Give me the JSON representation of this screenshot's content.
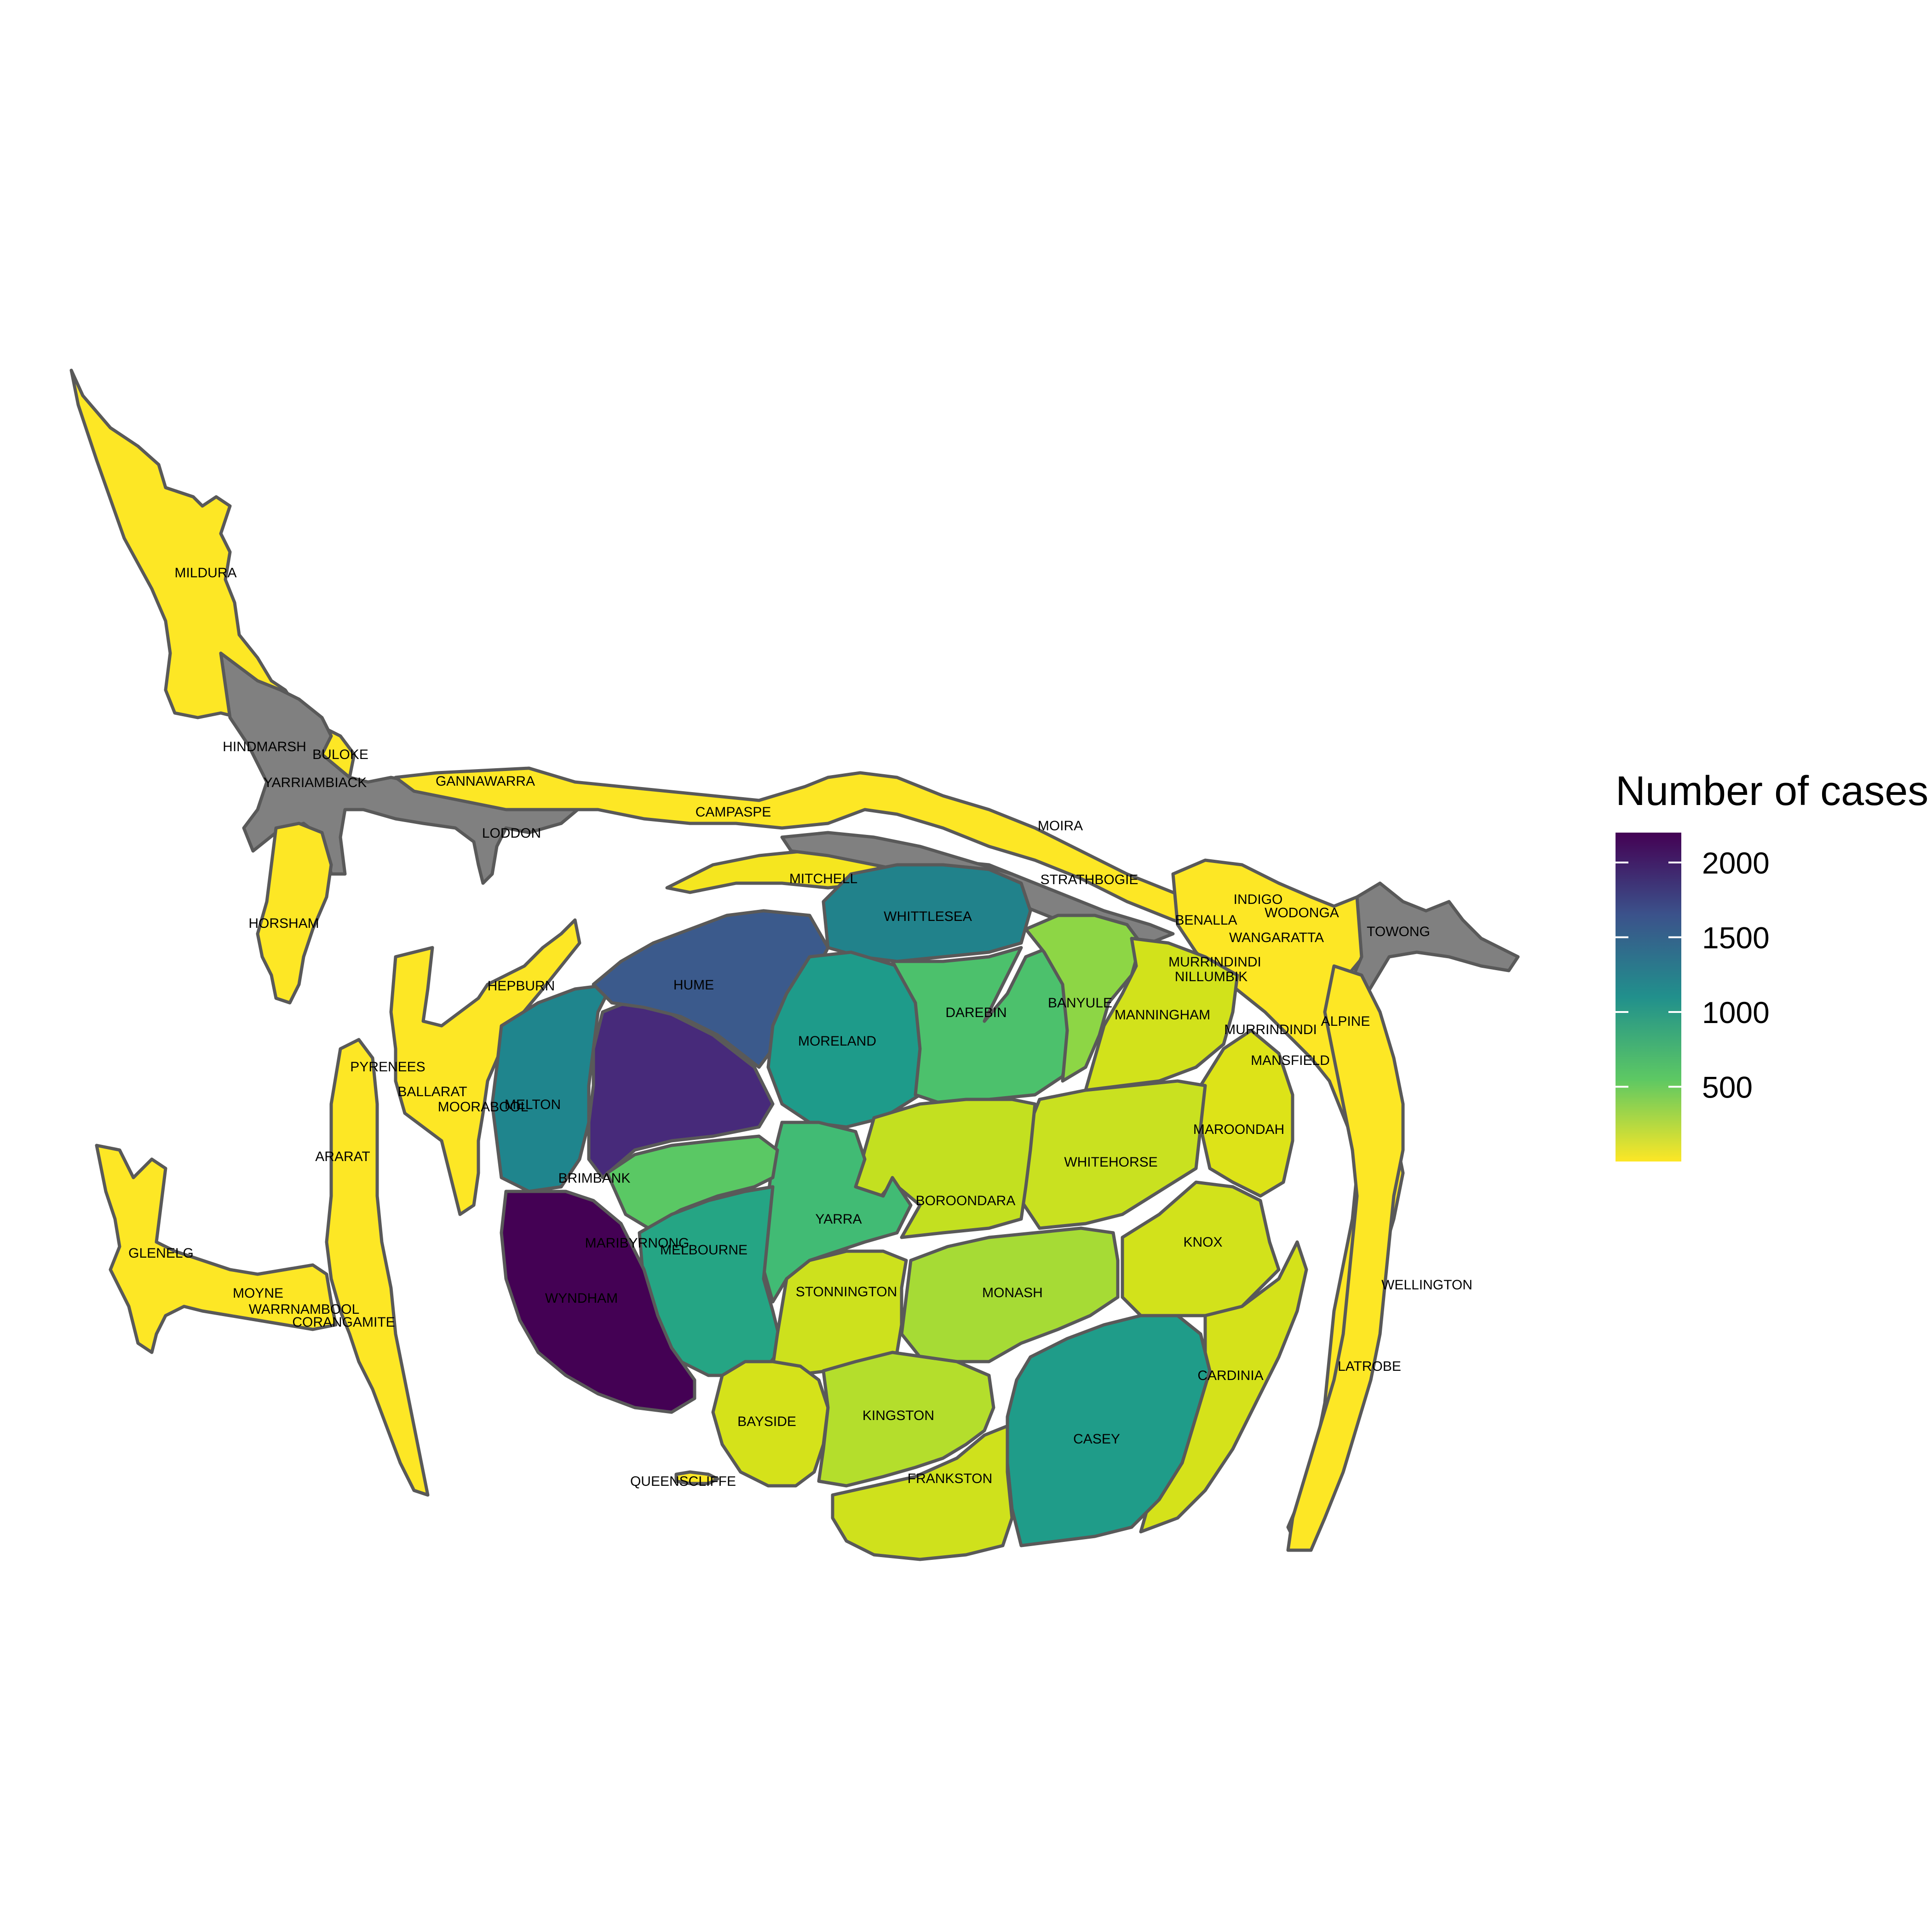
{
  "legend": {
    "title": "Number of cases",
    "ticks": [
      "2000",
      "1500",
      "1000",
      "500"
    ],
    "colors": [
      "#440154",
      "#3b528b",
      "#21908c",
      "#5dc863",
      "#fde725"
    ],
    "na_color": "#808080"
  },
  "colors": {
    "WYNDHAM": "#440154",
    "BRIMBANK": "#472a7a",
    "HUME": "#3b5a8c",
    "WHITTLESEA": "#21828b",
    "MELTON": "#1f858d",
    "CASEY": "#1f9c89",
    "MORELAND": "#1e9b8a",
    "MELBOURNE": "#25a584",
    "YARRA": "#41bb74",
    "DAREBIN": "#4cc16c",
    "MARIBYRNONG": "#5ac864",
    "BANYULE": "#8dd645",
    "MONASH": "#a6db35",
    "KINGSTON": "#b4de2c",
    "BOROONDARA": "#c3e020",
    "WHITEHORSE": "#c9e120",
    "STONNINGTON": "#cde11d",
    "FRANKSTON": "#cfe11c",
    "MANNINGHAM": "#d2e21b",
    "KNOX": "#d2e21b",
    "BAYSIDE": "#d5e21a",
    "CARDINIA": "#d5e21a",
    "MAROONDAH": "#dde318",
    "MITCHELL": "#f5e61f",
    "RURAL": "#fde725"
  },
  "region_labels": [
    "MILDURA",
    "HINDMARSH",
    "BULOKE",
    "YARRIAMBIACK",
    "GANNAWARRA",
    "LODDON",
    "CAMPASPE",
    "MOIRA",
    "MITCHELL",
    "STRATHBOGIE",
    "HORSHAM",
    "WHITTLESEA",
    "HUME",
    "BENALLA",
    "INDIGO",
    "WODONGA",
    "WANGARATTA",
    "TOWONG",
    "HEPBURN",
    "MURRINDINDI",
    "NILLUMBIK",
    "DAREBIN",
    "BANYULE",
    "MANNINGHAM",
    "MORELAND",
    "MURRINDINDI",
    "ALPINE",
    "PYRENEES",
    "MANSFIELD",
    "BALLARAT",
    "MELTON",
    "MOORABOOL",
    "MAROONDAH",
    "WHITEHORSE",
    "ARARAT",
    "BRIMBANK",
    "BOROONDARA",
    "YARRA",
    "KNOX",
    "MARIBYRNONG",
    "MELBOURNE",
    "GLENELG",
    "STONNINGTON",
    "MONASH",
    "WELLINGTON",
    "MOYNE",
    "WYNDHAM",
    "WARRNAMBOOL",
    "CORANGAMITE",
    "LATROBE",
    "CARDINIA",
    "KINGSTON",
    "BAYSIDE",
    "CASEY",
    "FRANKSTON",
    "QUEENSCLIFFE"
  ]
}
